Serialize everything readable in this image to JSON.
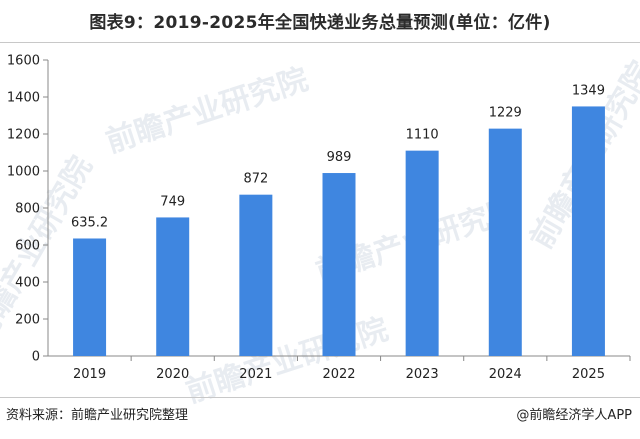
{
  "header": {
    "title": "图表9：2019-2025年全国快递业务总量预测(单位：亿件)"
  },
  "footer": {
    "source": "资料来源：前瞻产业研究院整理",
    "brand": "@前瞻经济学人APP"
  },
  "watermark": {
    "text": "前瞻产业研究院"
  },
  "chart_data": {
    "type": "bar",
    "title": "图表9：2019-2025年全国快递业务总量预测(单位：亿件)",
    "xlabel": "",
    "ylabel": "",
    "categories": [
      "2019",
      "2020",
      "2021",
      "2022",
      "2023",
      "2024",
      "2025"
    ],
    "values": [
      635.2,
      749,
      872,
      989,
      1110,
      1229,
      1349
    ],
    "value_labels": [
      "635.2",
      "749",
      "872",
      "989",
      "1110",
      "1229",
      "1349"
    ],
    "ylim": [
      0,
      1600
    ],
    "yticks": [
      0,
      200,
      400,
      600,
      800,
      1000,
      1200,
      1400,
      1600
    ],
    "grid": false,
    "legend": "none",
    "bar_color": "#3f86e0"
  }
}
